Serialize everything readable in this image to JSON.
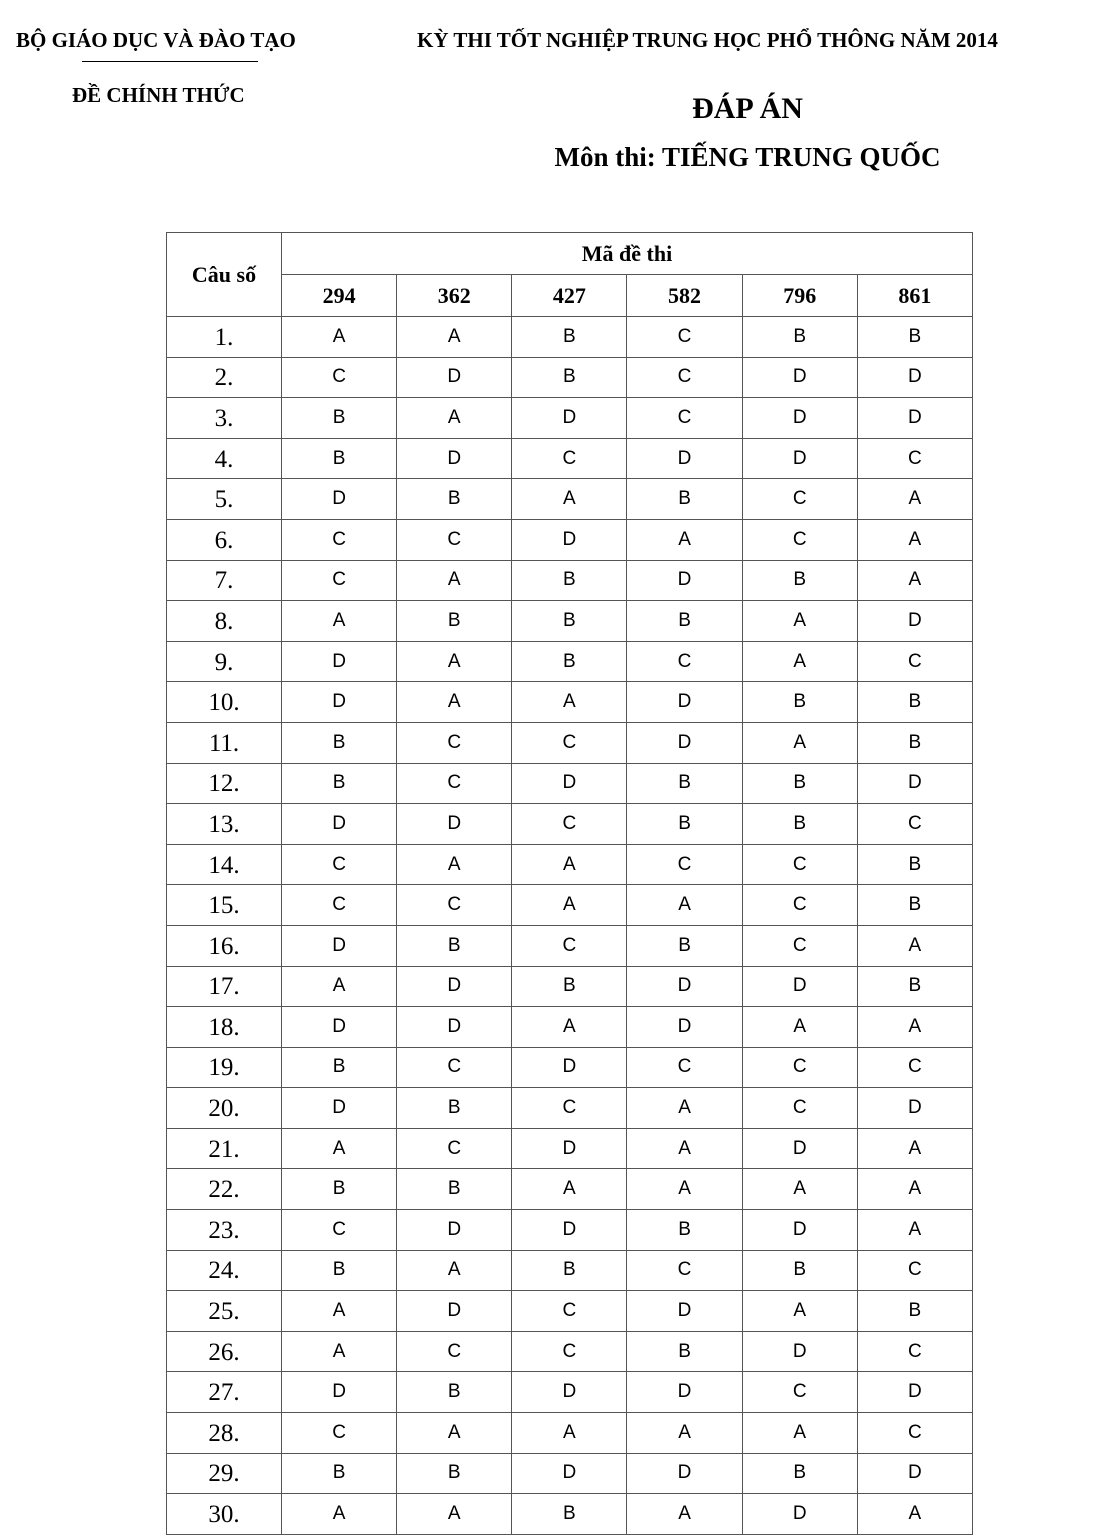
{
  "header": {
    "ministry": "BỘ GIÁO DỤC VÀ ĐÀO TẠO",
    "official": "ĐỀ CHÍNH THỨC",
    "exam": "KỲ THI TỐT NGHIỆP TRUNG HỌC PHỔ THÔNG NĂM 2014",
    "title": "ĐÁP ÁN",
    "subject": "Môn thi: TIẾNG TRUNG QUỐC"
  },
  "table": {
    "question_header": "Câu số",
    "code_header": "Mã đề thi",
    "codes": [
      "294",
      "362",
      "427",
      "582",
      "796",
      "861"
    ],
    "rows": [
      {
        "q": "1.",
        "a": [
          "A",
          "A",
          "B",
          "C",
          "B",
          "B"
        ]
      },
      {
        "q": "2.",
        "a": [
          "C",
          "D",
          "B",
          "C",
          "D",
          "D"
        ]
      },
      {
        "q": "3.",
        "a": [
          "B",
          "A",
          "D",
          "C",
          "D",
          "D"
        ]
      },
      {
        "q": "4.",
        "a": [
          "B",
          "D",
          "C",
          "D",
          "D",
          "C"
        ]
      },
      {
        "q": "5.",
        "a": [
          "D",
          "B",
          "A",
          "B",
          "C",
          "A"
        ]
      },
      {
        "q": "6.",
        "a": [
          "C",
          "C",
          "D",
          "A",
          "C",
          "A"
        ]
      },
      {
        "q": "7.",
        "a": [
          "C",
          "A",
          "B",
          "D",
          "B",
          "A"
        ]
      },
      {
        "q": "8.",
        "a": [
          "A",
          "B",
          "B",
          "B",
          "A",
          "D"
        ]
      },
      {
        "q": "9.",
        "a": [
          "D",
          "A",
          "B",
          "C",
          "A",
          "C"
        ]
      },
      {
        "q": "10.",
        "a": [
          "D",
          "A",
          "A",
          "D",
          "B",
          "B"
        ]
      },
      {
        "q": "11.",
        "a": [
          "B",
          "C",
          "C",
          "D",
          "A",
          "B"
        ]
      },
      {
        "q": "12.",
        "a": [
          "B",
          "C",
          "D",
          "B",
          "B",
          "D"
        ]
      },
      {
        "q": "13.",
        "a": [
          "D",
          "D",
          "C",
          "B",
          "B",
          "C"
        ]
      },
      {
        "q": "14.",
        "a": [
          "C",
          "A",
          "A",
          "C",
          "C",
          "B"
        ]
      },
      {
        "q": "15.",
        "a": [
          "C",
          "C",
          "A",
          "A",
          "C",
          "B"
        ]
      },
      {
        "q": "16.",
        "a": [
          "D",
          "B",
          "C",
          "B",
          "C",
          "A"
        ]
      },
      {
        "q": "17.",
        "a": [
          "A",
          "D",
          "B",
          "D",
          "D",
          "B"
        ]
      },
      {
        "q": "18.",
        "a": [
          "D",
          "D",
          "A",
          "D",
          "A",
          "A"
        ]
      },
      {
        "q": "19.",
        "a": [
          "B",
          "C",
          "D",
          "C",
          "C",
          "C"
        ]
      },
      {
        "q": "20.",
        "a": [
          "D",
          "B",
          "C",
          "A",
          "C",
          "D"
        ]
      },
      {
        "q": "21.",
        "a": [
          "A",
          "C",
          "D",
          "A",
          "D",
          "A"
        ]
      },
      {
        "q": "22.",
        "a": [
          "B",
          "B",
          "A",
          "A",
          "A",
          "A"
        ]
      },
      {
        "q": "23.",
        "a": [
          "C",
          "D",
          "D",
          "B",
          "D",
          "A"
        ]
      },
      {
        "q": "24.",
        "a": [
          "B",
          "A",
          "B",
          "C",
          "B",
          "C"
        ]
      },
      {
        "q": "25.",
        "a": [
          "A",
          "D",
          "C",
          "D",
          "A",
          "B"
        ]
      },
      {
        "q": "26.",
        "a": [
          "A",
          "C",
          "C",
          "B",
          "D",
          "C"
        ]
      },
      {
        "q": "27.",
        "a": [
          "D",
          "B",
          "D",
          "D",
          "C",
          "D"
        ]
      },
      {
        "q": "28.",
        "a": [
          "C",
          "A",
          "A",
          "A",
          "A",
          "C"
        ]
      },
      {
        "q": "29.",
        "a": [
          "B",
          "B",
          "D",
          "D",
          "B",
          "D"
        ]
      },
      {
        "q": "30.",
        "a": [
          "A",
          "A",
          "B",
          "A",
          "D",
          "A"
        ]
      }
    ]
  }
}
